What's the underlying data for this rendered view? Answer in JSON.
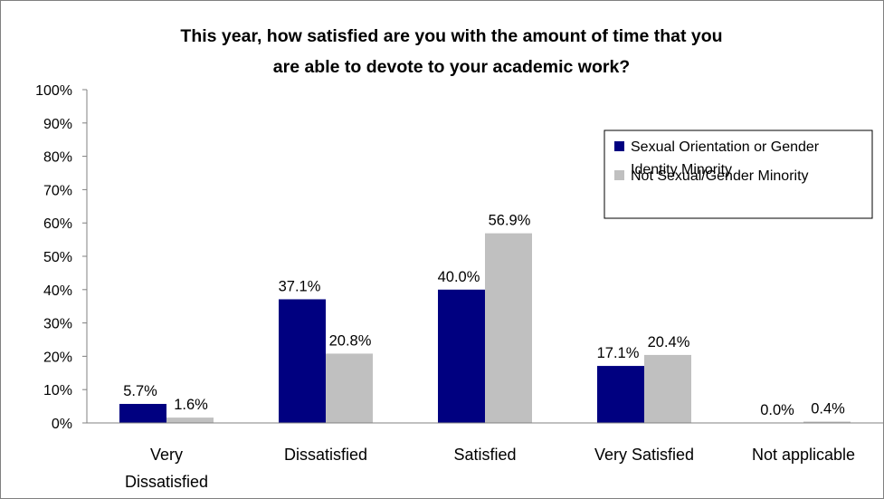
{
  "chart_data": {
    "type": "bar",
    "title": "This year, how satisfied are you with the amount of time that you are able to devote to your academic work?",
    "title_lines": [
      "This year, how satisfied are you with the amount of time that you",
      "are able to devote to your academic work?"
    ],
    "categories": [
      "Very Dissatisfied",
      "Dissatisfied",
      "Satisfied",
      "Very Satisfied",
      "Not applicable"
    ],
    "category_lines": [
      [
        "Very",
        "Dissatisfied"
      ],
      [
        "Dissatisfied"
      ],
      [
        "Satisfied"
      ],
      [
        "Very Satisfied"
      ],
      [
        "Not applicable"
      ]
    ],
    "series": [
      {
        "name": "Sexual Orientation or Gender Identity Minority",
        "legend_lines": [
          "Sexual Orientation or Gender",
          "Identity Minority"
        ],
        "color": "#000080",
        "values": [
          5.7,
          37.1,
          40.0,
          17.1,
          0.0
        ],
        "labels": [
          "5.7%",
          "37.1%",
          "40.0%",
          "17.1%",
          "0.0%"
        ]
      },
      {
        "name": "Not Sexual/Gender Minority",
        "legend_lines": [
          "Not Sexual/Gender Minority"
        ],
        "color": "#C0C0C0",
        "values": [
          1.6,
          20.8,
          56.9,
          20.4,
          0.4
        ],
        "labels": [
          "1.6%",
          "20.8%",
          "56.9%",
          "20.4%",
          "0.4%"
        ]
      }
    ],
    "y_ticks": [
      "0%",
      "10%",
      "20%",
      "30%",
      "40%",
      "50%",
      "60%",
      "70%",
      "80%",
      "90%",
      "100%"
    ],
    "ylim": [
      0,
      100
    ],
    "xlabel": "",
    "ylabel": "",
    "grid": false,
    "legend_position": "top-right"
  }
}
